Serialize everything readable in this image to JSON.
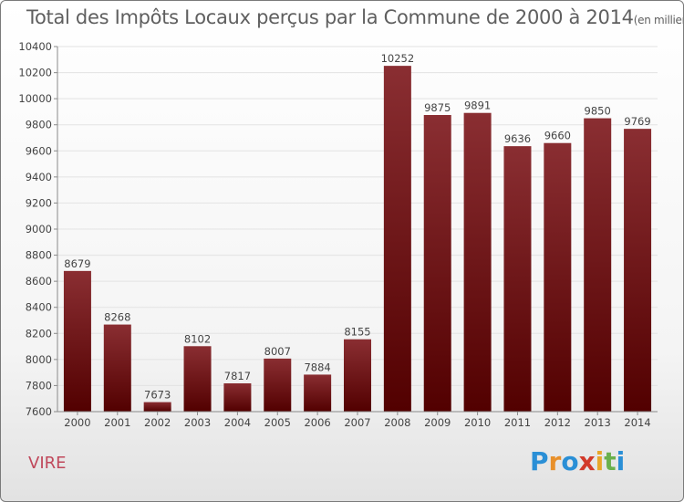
{
  "title": "Total des Impôts Locaux perçus par la Commune de 2000 à 2014",
  "title_unit": "(en milliers d'€)",
  "commune": "VIRE",
  "logo": {
    "letters": [
      "P",
      "r",
      "o",
      "x",
      "i",
      "t",
      "i"
    ],
    "colors": [
      "#2a8fd6",
      "#e8902a",
      "#2a8fd6",
      "#d23a2a",
      "#e8a72a",
      "#6ab04c",
      "#2a8fd6"
    ]
  },
  "colors": {
    "bar_dark": "#520000",
    "bar_light": "#8a2e32",
    "grid": "#e3e3e3",
    "axis": "#8a8a8a",
    "text": "#444444"
  },
  "chart_data": {
    "type": "bar",
    "categories": [
      "2000",
      "2001",
      "2002",
      "2003",
      "2004",
      "2005",
      "2006",
      "2007",
      "2008",
      "2009",
      "2010",
      "2011",
      "2012",
      "2013",
      "2014"
    ],
    "values": [
      8679,
      8268,
      7673,
      8102,
      7817,
      8007,
      7884,
      8155,
      10252,
      9875,
      9891,
      9636,
      9660,
      9850,
      9769
    ],
    "ylim": [
      7600,
      10400
    ],
    "yticks": [
      7600,
      7800,
      8000,
      8200,
      8400,
      8600,
      8800,
      9000,
      9200,
      9400,
      9600,
      9800,
      10000,
      10200,
      10400
    ],
    "grid": true,
    "data_labels": true
  }
}
